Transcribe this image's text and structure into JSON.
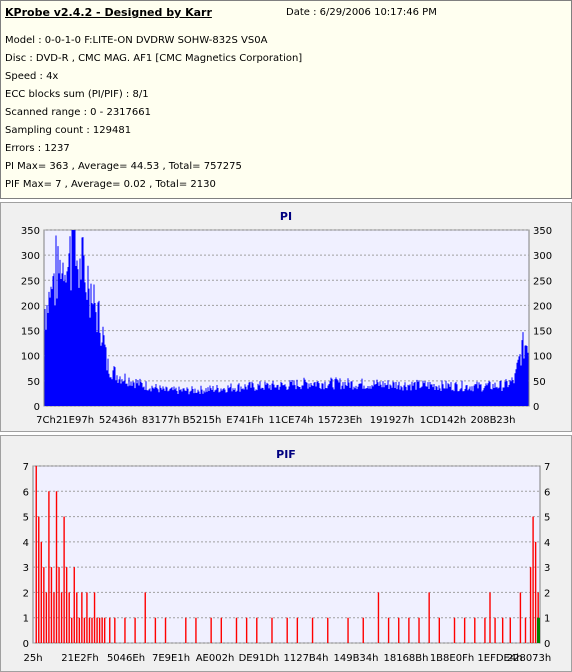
{
  "header": {
    "app_title": "KProbe v2.4.2 - Designed by Karr",
    "date": "Date : 6/29/2006 10:17:46 PM",
    "lines": [
      "Model : 0-0-1-0 F:LITE-ON DVDRW SOHW-832S  VS0A",
      "Disc : DVD-R , CMC MAG. AF1 [CMC Magnetics Corporation]",
      "Speed : 4x",
      "ECC blocks sum (PI/PIF) : 8/1",
      "Scanned range : 0 - 2317661",
      "Sampling count : 129481",
      "Errors : 1237",
      "PI Max= 363 , Average= 44.53 , Total= 757275",
      "PIF Max= 7 , Average= 0.02 , Total= 2130"
    ]
  },
  "colors": {
    "pi_fill": "#0000ff",
    "pif_bar": "#ff0000",
    "pif_end": "#008000",
    "plot_bg": "#f0f0ff"
  },
  "chart_data": [
    {
      "type": "area",
      "title": "PI",
      "ylim": [
        0,
        350
      ],
      "yticks": [
        0,
        50,
        100,
        150,
        200,
        250,
        300,
        350
      ],
      "xtick_labels": [
        "7Ch",
        "21E97h",
        "52436h",
        "83177h",
        "B5215h",
        "E741Fh",
        "11CE74h",
        "15723Eh",
        "191927h",
        "1CD142h",
        "208B23h"
      ],
      "profile": {
        "x": [
          0,
          0.02,
          0.04,
          0.06,
          0.08,
          0.1,
          0.12,
          0.13,
          0.15,
          0.18,
          0.2,
          0.22,
          0.25,
          0.3,
          0.35,
          0.4,
          0.5,
          0.55,
          0.6,
          0.7,
          0.8,
          0.9,
          0.95,
          0.97,
          0.985,
          1.0
        ],
        "y": [
          160,
          230,
          260,
          270,
          240,
          205,
          150,
          80,
          60,
          50,
          42,
          38,
          30,
          30,
          33,
          37,
          40,
          45,
          44,
          42,
          40,
          38,
          40,
          50,
          110,
          130
        ]
      },
      "peak": 363
    },
    {
      "type": "bar",
      "title": "PIF",
      "ylim": [
        0,
        7
      ],
      "yticks": [
        0,
        1,
        2,
        3,
        4,
        5,
        6,
        7
      ],
      "xtick_labels": [
        "25h",
        "21E2Fh",
        "5046Eh",
        "7E9E1h",
        "AE002h",
        "DE91Dh",
        "1127B4h",
        "149B34h",
        "18168Bh",
        "1B8E0Fh",
        "1EFDE4h",
        "228073h"
      ],
      "bars": [
        {
          "x": 0.005,
          "v": 7
        },
        {
          "x": 0.01,
          "v": 5
        },
        {
          "x": 0.015,
          "v": 4
        },
        {
          "x": 0.02,
          "v": 3
        },
        {
          "x": 0.025,
          "v": 2
        },
        {
          "x": 0.03,
          "v": 6
        },
        {
          "x": 0.035,
          "v": 3
        },
        {
          "x": 0.04,
          "v": 2
        },
        {
          "x": 0.045,
          "v": 6
        },
        {
          "x": 0.05,
          "v": 3
        },
        {
          "x": 0.055,
          "v": 2
        },
        {
          "x": 0.06,
          "v": 5
        },
        {
          "x": 0.065,
          "v": 3
        },
        {
          "x": 0.07,
          "v": 2
        },
        {
          "x": 0.075,
          "v": 1
        },
        {
          "x": 0.08,
          "v": 3
        },
        {
          "x": 0.085,
          "v": 2
        },
        {
          "x": 0.09,
          "v": 1
        },
        {
          "x": 0.095,
          "v": 2
        },
        {
          "x": 0.1,
          "v": 1
        },
        {
          "x": 0.105,
          "v": 2
        },
        {
          "x": 0.11,
          "v": 1
        },
        {
          "x": 0.115,
          "v": 1
        },
        {
          "x": 0.12,
          "v": 2
        },
        {
          "x": 0.125,
          "v": 1
        },
        {
          "x": 0.13,
          "v": 1
        },
        {
          "x": 0.135,
          "v": 1
        },
        {
          "x": 0.14,
          "v": 1
        },
        {
          "x": 0.15,
          "v": 1
        },
        {
          "x": 0.16,
          "v": 1
        },
        {
          "x": 0.18,
          "v": 1
        },
        {
          "x": 0.2,
          "v": 1
        },
        {
          "x": 0.22,
          "v": 2
        },
        {
          "x": 0.24,
          "v": 1
        },
        {
          "x": 0.26,
          "v": 1
        },
        {
          "x": 0.3,
          "v": 1
        },
        {
          "x": 0.32,
          "v": 1
        },
        {
          "x": 0.35,
          "v": 1
        },
        {
          "x": 0.37,
          "v": 1
        },
        {
          "x": 0.4,
          "v": 1
        },
        {
          "x": 0.42,
          "v": 1
        },
        {
          "x": 0.44,
          "v": 1
        },
        {
          "x": 0.47,
          "v": 1
        },
        {
          "x": 0.5,
          "v": 1
        },
        {
          "x": 0.52,
          "v": 1
        },
        {
          "x": 0.55,
          "v": 1
        },
        {
          "x": 0.58,
          "v": 1
        },
        {
          "x": 0.62,
          "v": 1
        },
        {
          "x": 0.65,
          "v": 1
        },
        {
          "x": 0.68,
          "v": 2
        },
        {
          "x": 0.7,
          "v": 1
        },
        {
          "x": 0.72,
          "v": 1
        },
        {
          "x": 0.74,
          "v": 1
        },
        {
          "x": 0.76,
          "v": 1
        },
        {
          "x": 0.78,
          "v": 2
        },
        {
          "x": 0.8,
          "v": 1
        },
        {
          "x": 0.83,
          "v": 1
        },
        {
          "x": 0.85,
          "v": 1
        },
        {
          "x": 0.87,
          "v": 1
        },
        {
          "x": 0.89,
          "v": 1
        },
        {
          "x": 0.9,
          "v": 2
        },
        {
          "x": 0.91,
          "v": 1
        },
        {
          "x": 0.925,
          "v": 1
        },
        {
          "x": 0.94,
          "v": 1
        },
        {
          "x": 0.96,
          "v": 2
        },
        {
          "x": 0.97,
          "v": 1
        },
        {
          "x": 0.98,
          "v": 3
        },
        {
          "x": 0.985,
          "v": 5
        },
        {
          "x": 0.99,
          "v": 4
        },
        {
          "x": 0.995,
          "v": 2
        }
      ]
    }
  ]
}
